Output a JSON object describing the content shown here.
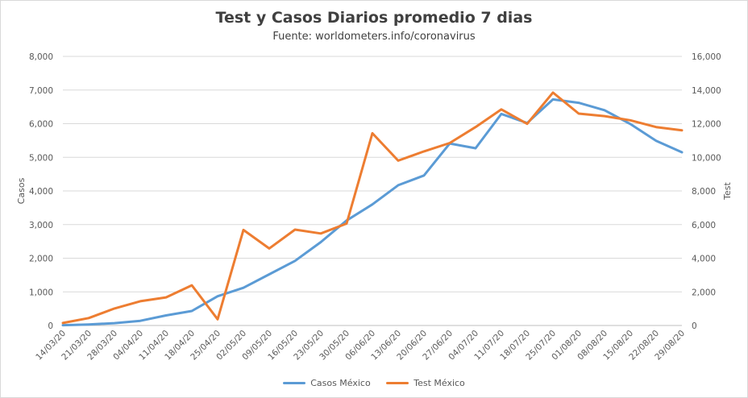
{
  "chart_data": {
    "type": "line",
    "title": "Test y Casos  Diarios  promedio 7 dias",
    "subtitle": "Fuente: worldometers.info/coronavirus",
    "ylabel_left": "Casos",
    "ylabel_right": "Test",
    "ylim_left": [
      0,
      8000
    ],
    "ylim_right": [
      0,
      16000
    ],
    "yticks_left": [
      "0",
      "1,000",
      "2,000",
      "3,000",
      "4,000",
      "5,000",
      "6,000",
      "7,000",
      "8,000"
    ],
    "yticks_right": [
      "0",
      "2,000",
      "4,000",
      "6,000",
      "8,000",
      "10,000",
      "12,000",
      "14,000",
      "16,000"
    ],
    "categories": [
      "14/03/20",
      "21/03/20",
      "28/03/20",
      "04/04/20",
      "11/04/20",
      "18/04/20",
      "25/04/20",
      "02/05/20",
      "09/05/20",
      "16/05/20",
      "23/05/20",
      "30/05/20",
      "06/06/20",
      "13/06/20",
      "20/06/20",
      "27/06/20",
      "04/07/20",
      "11/07/20",
      "18/07/20",
      "25/07/20",
      "01/08/20",
      "08/08/20",
      "15/08/20",
      "22/08/20",
      "29/08/20"
    ],
    "grid": true,
    "legend_position": "bottom",
    "series": [
      {
        "name": "Casos México",
        "axis": "left",
        "color": "#5b9bd5",
        "values": [
          10,
          30,
          70,
          140,
          300,
          430,
          870,
          1120,
          1520,
          1920,
          2480,
          3120,
          3600,
          4170,
          4460,
          5410,
          5270,
          6290,
          6020,
          6720,
          6620,
          6400,
          5990,
          5490,
          5150
        ]
      },
      {
        "name": "Test México",
        "axis": "right",
        "color": "#ed7d31",
        "values": [
          150,
          440,
          1010,
          1440,
          1670,
          2390,
          370,
          5680,
          4580,
          5700,
          5470,
          6060,
          11430,
          9800,
          10350,
          10850,
          11800,
          12850,
          11990,
          13850,
          12600,
          12450,
          12200,
          11800,
          11600
        ]
      }
    ]
  }
}
